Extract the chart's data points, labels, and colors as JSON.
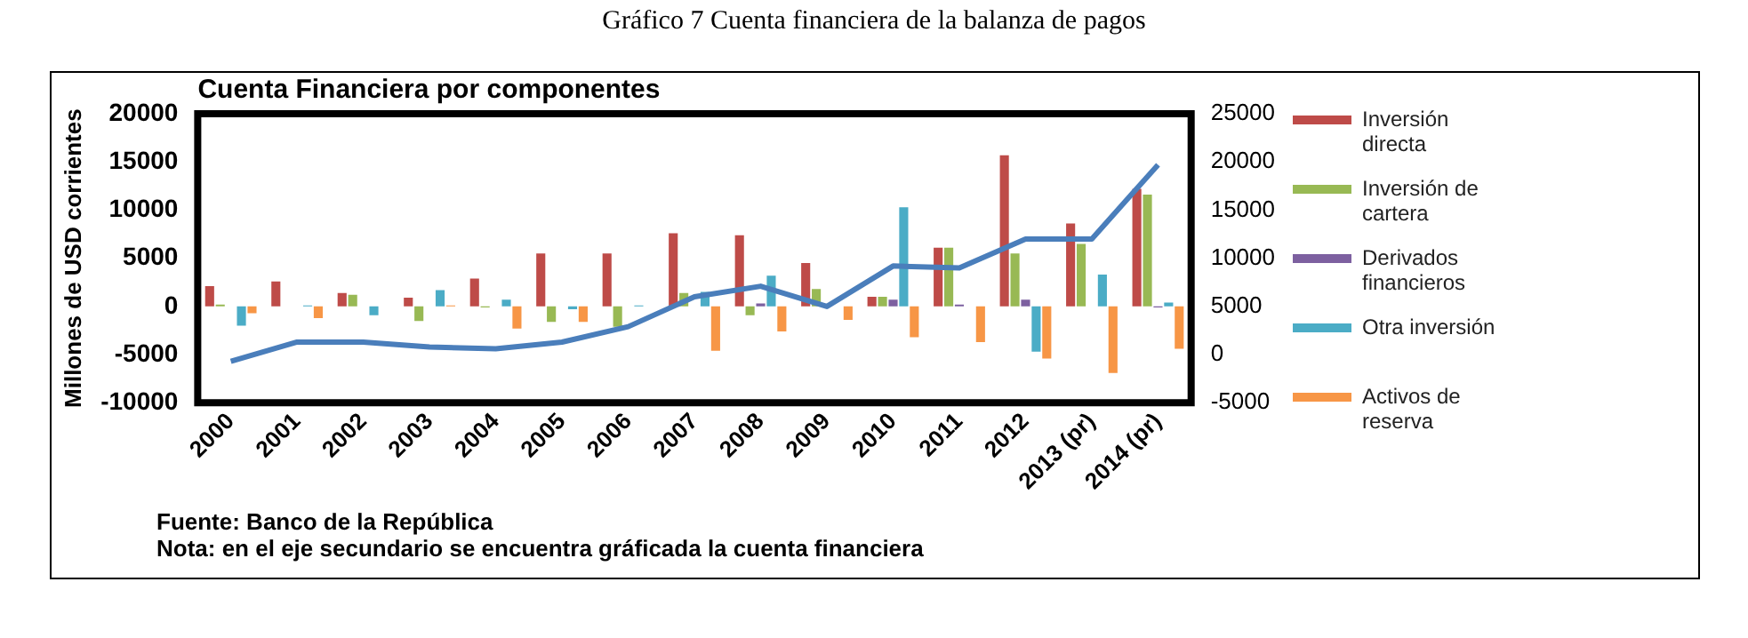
{
  "chart_data": {
    "type": "bar",
    "title": "Cuenta Financiera por componentes",
    "subtitle": "Gráfico 7 Cuenta financiera de la balanza de pagos",
    "ylabel": "Millones de USD corrientes",
    "categories": [
      "2000",
      "2001",
      "2002",
      "2003",
      "2004",
      "2005",
      "2006",
      "2007",
      "2008",
      "2009",
      "2010",
      "2011",
      "2012",
      "2013 (pr)",
      "2014 (pr)"
    ],
    "series": [
      {
        "name": "Inversión directa",
        "color": "#be4b48",
        "values": [
          2100,
          2600,
          1400,
          900,
          2900,
          5500,
          5500,
          7600,
          7400,
          4500,
          1000,
          6100,
          15700,
          8600,
          12200
        ]
      },
      {
        "name": "Inversión de cartera",
        "color": "#98b954",
        "values": [
          200,
          0,
          1200,
          -1500,
          -100,
          -1600,
          -2100,
          1400,
          -900,
          1800,
          1000,
          6100,
          5500,
          6500,
          11600
        ]
      },
      {
        "name": "Derivados financieros",
        "color": "#7d60a0",
        "values": [
          0,
          0,
          0,
          0,
          0,
          0,
          0,
          0,
          300,
          0,
          700,
          200,
          700,
          0,
          -100
        ]
      },
      {
        "name": "Otra inversión",
        "color": "#4bacc6",
        "values": [
          -2000,
          100,
          -900,
          1700,
          700,
          -300,
          100,
          1500,
          3200,
          0,
          10300,
          0,
          -4700,
          3300,
          400
        ]
      },
      {
        "name": "Activos de reserva",
        "color": "#f79646",
        "values": [
          -700,
          -1200,
          0,
          100,
          -2300,
          -1600,
          0,
          -4600,
          -2600,
          -1400,
          -3200,
          -3700,
          -5400,
          -6900,
          -4400
        ]
      },
      {
        "type": "line",
        "axis": "y2",
        "color": "#4a7ebb",
        "values": [
          -700,
          1300,
          1300,
          800,
          600,
          1300,
          2900,
          6000,
          7100,
          5000,
          9200,
          9000,
          12000,
          12000,
          19700
        ]
      }
    ],
    "ylim": [
      -10000,
      20000
    ],
    "yticks": [
      -10000,
      -5000,
      0,
      5000,
      10000,
      15000,
      20000
    ],
    "y2lim": [
      -5000,
      25000
    ],
    "y2ticks": [
      -5000,
      0,
      5000,
      10000,
      15000,
      20000,
      25000
    ],
    "grid": false,
    "legend": "right",
    "marker": "none",
    "line_style": "solid",
    "annotations": [
      "Fuente: Banco de la República",
      "Nota: en el eje secundario se encuentra gráficada la cuenta financiera"
    ]
  }
}
